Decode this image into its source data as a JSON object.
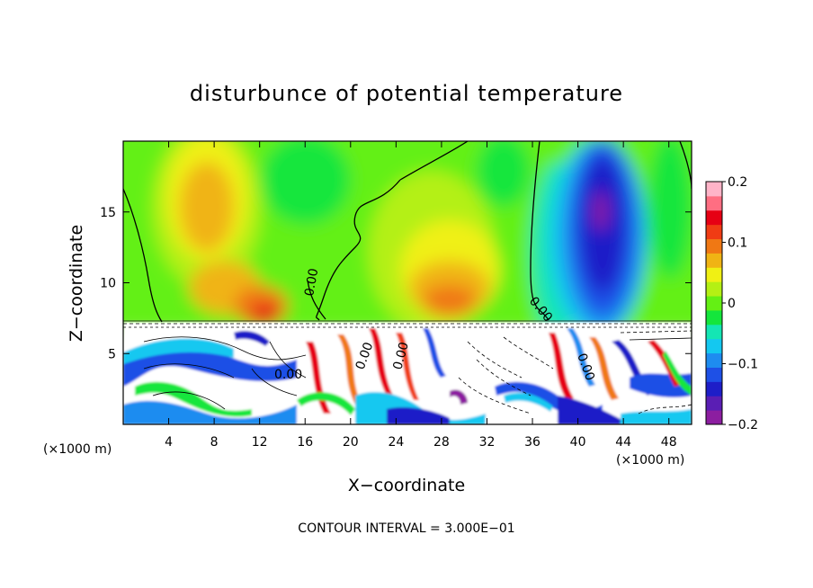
{
  "chart_data": {
    "type": "heatmap",
    "title": "disturbunce of potential temperature",
    "xlabel": "X−coordinate",
    "ylabel": "Z−coordinate",
    "x_unit": "(×1000 m)",
    "xlim": [
      0,
      50
    ],
    "ylim": [
      0,
      20
    ],
    "x_ticks": [
      4,
      8,
      12,
      16,
      20,
      24,
      28,
      32,
      36,
      40,
      44,
      48
    ],
    "y_ticks": [
      5,
      10,
      15
    ],
    "contour_label": "0.00",
    "footer": "CONTOUR INTERVAL = 3.000E−01",
    "colorbar": {
      "min": -0.2,
      "max": 0.2,
      "ticks": [
        0.2,
        0.1,
        0,
        -0.1,
        -0.2
      ],
      "tick_labels": [
        "0.2",
        "0.1",
        "0",
        "−0.1",
        "−0.2"
      ],
      "colors": [
        "#8c1ea0",
        "#5a1eb4",
        "#1e1ec8",
        "#1e50e6",
        "#1e8cf0",
        "#14c8f0",
        "#14e6b4",
        "#14e63c",
        "#64f014",
        "#b4f014",
        "#f0f014",
        "#f0b414",
        "#f07814",
        "#f03c14",
        "#e60014",
        "#ff6e82",
        "#ffb4c8"
      ]
    }
  }
}
